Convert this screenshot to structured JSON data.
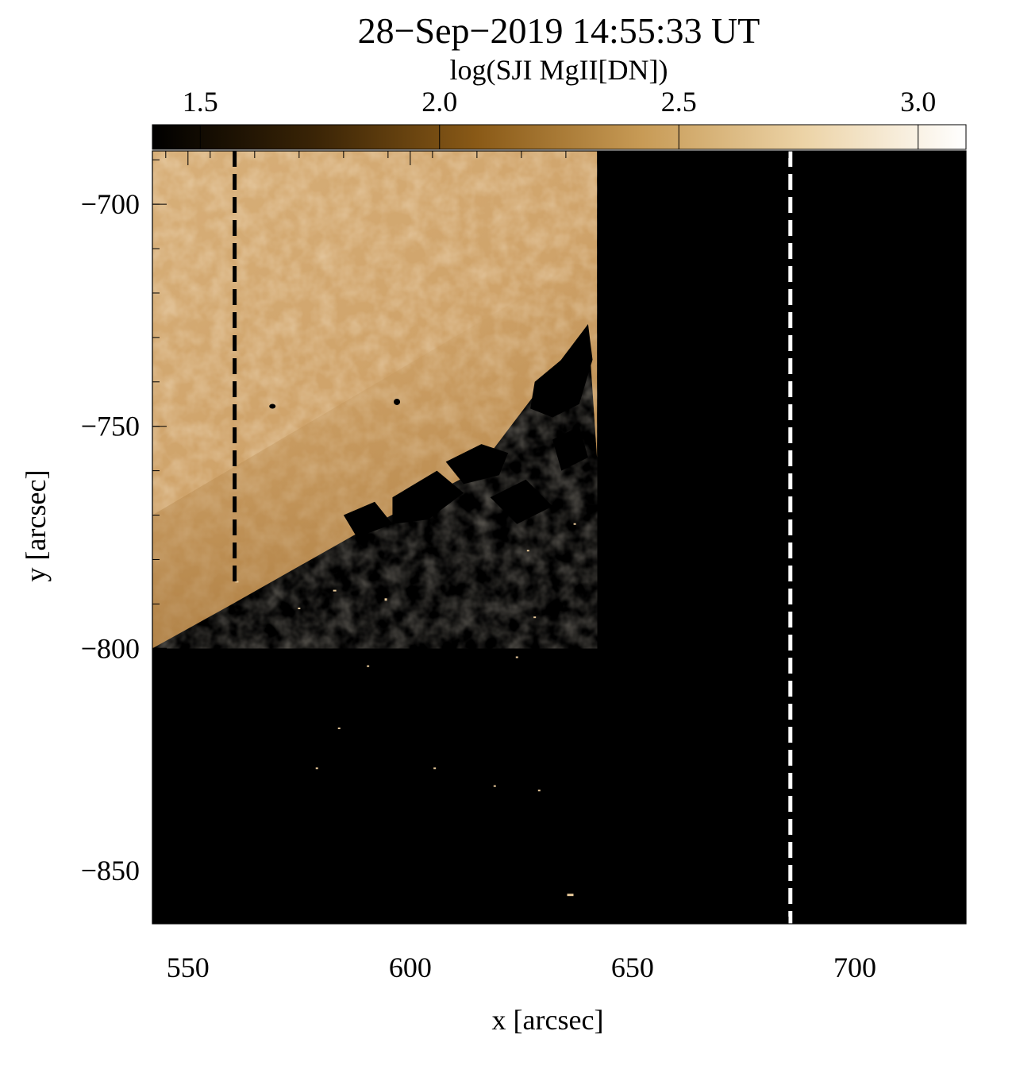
{
  "chart_data": {
    "type": "heatmap",
    "title": "28−Sep−2019 14:55:33 UT",
    "colorbar": {
      "label": "log(SJI MgII[DN])",
      "range": [
        1.4,
        3.1
      ],
      "ticks": [
        1.5,
        2.0,
        2.5,
        3.0
      ],
      "tick_labels": [
        "1.5",
        "2.0",
        "2.5",
        "3.0"
      ],
      "colormap": [
        "#000000",
        "#3a2406",
        "#8a5a17",
        "#c79a55",
        "#ecd3a6",
        "#ffffff"
      ]
    },
    "xlabel": "x [arcsec]",
    "ylabel": "y [arcsec]",
    "xlim": [
      542,
      725
    ],
    "ylim": [
      -862,
      -688
    ],
    "xticks": [
      550,
      600,
      650,
      700
    ],
    "xtick_labels": [
      "550",
      "600",
      "650",
      "700"
    ],
    "yticks": [
      -700,
      -750,
      -800,
      -850
    ],
    "ytick_labels": [
      "−700",
      "−750",
      "−800",
      "−850"
    ],
    "image_region": {
      "x_range": [
        542,
        642
      ],
      "y_range": [
        -800,
        -688
      ],
      "limb_edge": [
        [
          542,
          -800
        ],
        [
          560,
          -790
        ],
        [
          590,
          -773
        ],
        [
          615,
          -760
        ],
        [
          640,
          -727
        ]
      ],
      "note": "bright chromospheric disk above limb; black elsewhere"
    },
    "slit_lines": [
      {
        "x": 560.5,
        "y_range": [
          -786,
          -688
        ],
        "color": "#000000",
        "style": "dashed"
      },
      {
        "x": 685.5,
        "y_range": [
          -862,
          -688
        ],
        "color": "#ffffff",
        "style": "dashed"
      }
    ],
    "grid": false
  }
}
